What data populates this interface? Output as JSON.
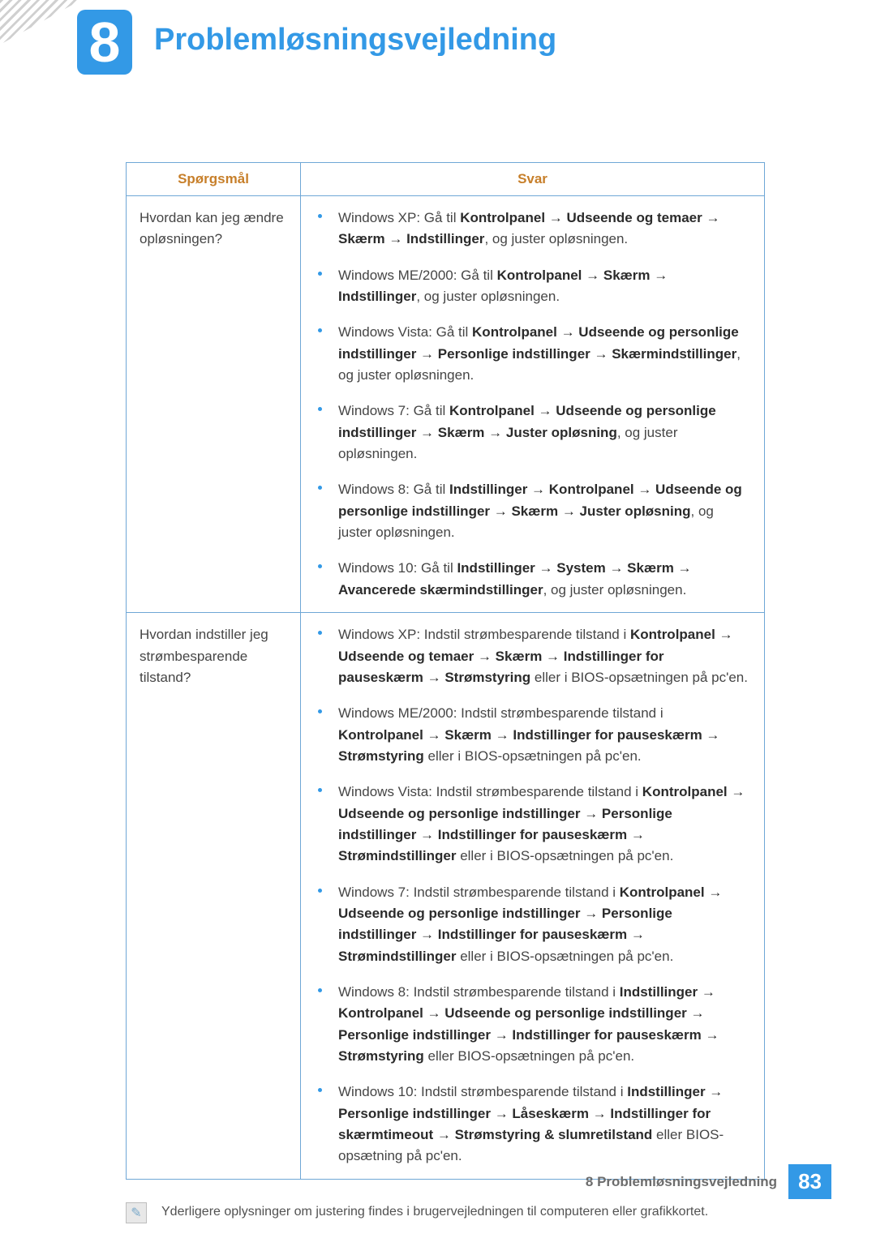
{
  "chapter": {
    "number": "8",
    "title": "Problemløsningsvejledning"
  },
  "table": {
    "headers": {
      "q": "Spørgsmål",
      "a": "Svar"
    },
    "rows": [
      {
        "question": "Hvordan kan jeg ændre opløsningen?",
        "answers": [
          {
            "prefix": "Windows XP: Gå til ",
            "bold1": "Kontrolpanel → Udseende og temaer → Skærm → Indstillinger",
            "suffix": ", og juster opløsningen."
          },
          {
            "prefix": "Windows ME/2000: Gå til ",
            "bold1": "Kontrolpanel → Skærm → Indstillinger",
            "suffix": ", og juster opløsningen."
          },
          {
            "prefix": "Windows Vista: Gå til ",
            "bold1": "Kontrolpanel → Udseende og personlige indstillinger → Personlige indstillinger → Skærmindstillinger",
            "suffix": ", og juster opløsningen."
          },
          {
            "prefix": "Windows 7: Gå til ",
            "bold1": "Kontrolpanel → Udseende og personlige indstillinger → Skærm → Juster opløsning",
            "suffix": ", og juster opløsningen."
          },
          {
            "prefix": "Windows 8: Gå til ",
            "bold1": "Indstillinger → Kontrolpanel → Udseende og personlige indstillinger → Skærm → Juster opløsning",
            "suffix": ", og juster opløsningen."
          },
          {
            "prefix": "Windows 10: Gå til ",
            "bold1": "Indstillinger → System → Skærm → Avancerede skærmindstillinger",
            "suffix": ", og juster opløsningen."
          }
        ]
      },
      {
        "question": "Hvordan indstiller jeg strømbesparende tilstand?",
        "answers": [
          {
            "prefix": "Windows XP: Indstil strømbesparende tilstand i ",
            "bold1": "Kontrolpanel → Udseende og temaer → Skærm → Indstillinger for pauseskærm → Strømstyring",
            "suffix": " eller i BIOS-opsætningen på pc'en."
          },
          {
            "prefix": "Windows ME/2000: Indstil strømbesparende tilstand i ",
            "bold1": "Kontrolpanel → Skærm → Indstillinger for pauseskærm → Strømstyring",
            "suffix": " eller i BIOS-opsætningen på pc'en."
          },
          {
            "prefix": "Windows Vista: Indstil strømbesparende tilstand i ",
            "bold1": "Kontrolpanel → Udseende og personlige indstillinger → Personlige indstillinger → Indstillinger for pauseskærm → Strømindstillinger",
            "suffix": " eller i BIOS-opsætningen på pc'en."
          },
          {
            "prefix": "Windows 7: Indstil strømbesparende tilstand i ",
            "bold1": "Kontrolpanel → Udseende og personlige indstillinger → Personlige indstillinger → Indstillinger for pauseskærm → Strømindstillinger",
            "suffix": " eller i BIOS-opsætningen på pc'en."
          },
          {
            "prefix": "Windows 8: Indstil strømbesparende tilstand i ",
            "bold1": "Indstillinger → Kontrolpanel → Udseende og personlige indstillinger → Personlige indstillinger → Indstillinger for pauseskærm → Strømstyring",
            "suffix": " eller BIOS-opsætningen på pc'en."
          },
          {
            "prefix": "Windows 10: Indstil strømbesparende tilstand i ",
            "bold1": "Indstillinger → Personlige indstillinger → Låseskærm → Indstillinger for skærmtimeout → Strømstyring & slumretilstand",
            "suffix": " eller BIOS-opsætning på pc'en."
          }
        ]
      }
    ]
  },
  "note": "Yderligere oplysninger om justering findes i brugervejledningen til computeren eller grafikkortet.",
  "footer": {
    "text": "8 Problemløsningsvejledning",
    "page": "83"
  },
  "colors": {
    "accent": "#3399e6",
    "header_text": "#c77f2a",
    "border": "#6fa7d6",
    "body_text": "#454545"
  }
}
